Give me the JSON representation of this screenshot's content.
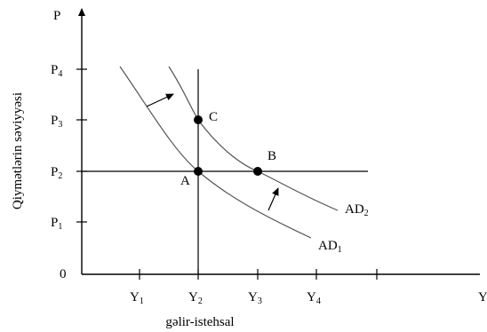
{
  "axes": {
    "y_axis_symbol": "P",
    "x_axis_symbol": "Y",
    "origin_label": "0",
    "y_title": "Qiymətlərin səviyyəsi",
    "x_title": "gəlir-istehsal"
  },
  "y_ticks": [
    {
      "base": "P",
      "sub": "1"
    },
    {
      "base": "P",
      "sub": "2"
    },
    {
      "base": "P",
      "sub": "3"
    },
    {
      "base": "P",
      "sub": "4"
    }
  ],
  "x_ticks": [
    {
      "base": "Y",
      "sub": "1"
    },
    {
      "base": "Y",
      "sub": "2"
    },
    {
      "base": "Y",
      "sub": "3"
    },
    {
      "base": "Y",
      "sub": "4"
    }
  ],
  "points": {
    "A": "A",
    "B": "B",
    "C": "C"
  },
  "curves": {
    "ad1": {
      "base": "AD",
      "sub": "1"
    },
    "ad2": {
      "base": "AD",
      "sub": "2"
    }
  },
  "colors": {
    "axes": "#000000",
    "curves": "#555555",
    "points": "#000000"
  }
}
